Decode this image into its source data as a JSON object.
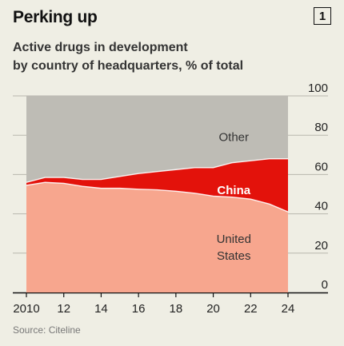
{
  "title": "Perking up",
  "badge": "1",
  "subtitle_lines": [
    "Active drugs in development",
    "by country of headquarters, % of total"
  ],
  "source": "Source: Citeline",
  "colors": {
    "background": "#efeee4",
    "united_states": "#f7a68e",
    "china": "#e3120b",
    "other": "#bebcb5",
    "gridline": "#b8b7ae",
    "axis": "#111111"
  },
  "chart_data": {
    "type": "area",
    "stacked": true,
    "percent_stacked": true,
    "x": [
      2010,
      2011,
      2012,
      2013,
      2014,
      2015,
      2016,
      2017,
      2018,
      2019,
      2020,
      2021,
      2022,
      2023,
      2024
    ],
    "series": [
      {
        "name": "United States",
        "label_lines": [
          "United",
          "States"
        ],
        "values": [
          54.5,
          56,
          55.5,
          54,
          53,
          53,
          52.5,
          52.2,
          51.5,
          50.5,
          49,
          48.5,
          47.5,
          45,
          41
        ]
      },
      {
        "name": "China",
        "label_lines": [
          "China"
        ],
        "values": [
          1.5,
          2.5,
          3,
          3.5,
          4.5,
          6,
          8,
          9.3,
          11,
          13,
          14.5,
          17.5,
          19.5,
          23,
          27
        ]
      },
      {
        "name": "Other",
        "label_lines": [
          "Other"
        ],
        "values": [
          44,
          41.5,
          41.5,
          42.5,
          42.5,
          41,
          39.5,
          38.5,
          37.5,
          36.5,
          36.5,
          34,
          33,
          32,
          32
        ]
      }
    ],
    "xlim": [
      2010,
      2024
    ],
    "ylim": [
      0,
      100
    ],
    "x_ticks": [
      2010,
      2012,
      2014,
      2016,
      2018,
      2020,
      2022,
      2024
    ],
    "x_tick_labels": [
      "2010",
      "12",
      "14",
      "16",
      "18",
      "20",
      "22",
      "24"
    ],
    "y_ticks": [
      0,
      20,
      40,
      60,
      80,
      100
    ],
    "y_tick_labels": [
      "0",
      "20",
      "40",
      "60",
      "80",
      "100"
    ],
    "y_axis_side": "right",
    "grid": true,
    "legend": "inline labels"
  }
}
